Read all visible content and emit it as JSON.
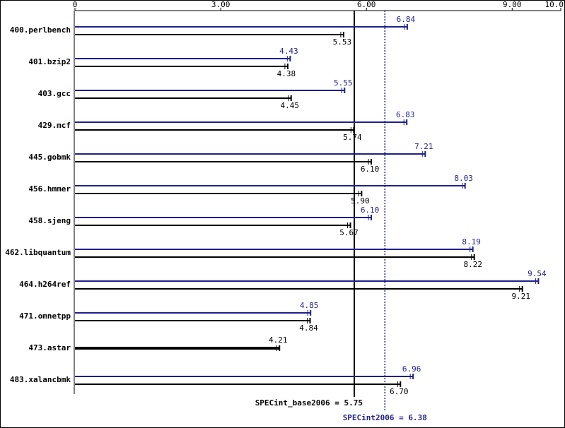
{
  "chart_data": {
    "type": "spec-bar",
    "categories": [
      "400.perlbench",
      "401.bzip2",
      "403.gcc",
      "429.mcf",
      "445.gobmk",
      "456.hmmer",
      "458.sjeng",
      "462.libquantum",
      "464.h264ref",
      "471.omnetpp",
      "473.astar",
      "483.xalancbmk"
    ],
    "series": [
      {
        "color": "#1f1f8f",
        "values": [
          6.84,
          4.43,
          5.55,
          6.83,
          7.21,
          8.03,
          6.1,
          8.19,
          9.54,
          4.85,
          null,
          6.96
        ],
        "value_labels": [
          "6.84",
          "4.43",
          "5.55",
          "6.83",
          "7.21",
          "8.03",
          "6.10",
          "8.19",
          "9.54",
          "4.85",
          null,
          "6.96"
        ]
      },
      {
        "color": "#000000",
        "values": [
          5.53,
          4.38,
          4.45,
          5.74,
          6.1,
          5.9,
          5.67,
          8.22,
          9.21,
          4.84,
          4.21,
          6.7
        ],
        "value_labels": [
          "5.53",
          "4.38",
          "4.45",
          "5.74",
          "6.10",
          "5.90",
          "5.67",
          "8.22",
          "9.21",
          "4.84",
          "4.21",
          "6.70"
        ]
      }
    ],
    "xlim": [
      0,
      10
    ],
    "xticks": [
      0,
      {
        "value": 3,
        "label": "3.00"
      },
      {
        "value": 6,
        "label": "6.00"
      },
      {
        "value": 9,
        "label": "9.00"
      },
      {
        "value": 10,
        "label": "10.0"
      }
    ],
    "reference_lines": [
      {
        "value": 5.75,
        "label": "SPECint_base2006 = 5.75",
        "color": "#000000",
        "style": "solid"
      },
      {
        "value": 6.38,
        "label": "SPECint2006 = 6.38",
        "color": "#1f1f8f",
        "style": "dotted"
      }
    ]
  }
}
